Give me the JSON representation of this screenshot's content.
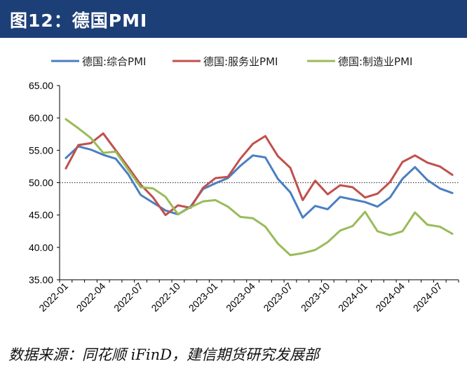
{
  "header": {
    "title": "图12：德国PMI"
  },
  "footer": {
    "source": "数据来源：同花顺 iFinD，建信期货研究发展部"
  },
  "chart_data": {
    "type": "line",
    "title": "",
    "xlabel": "",
    "ylabel": "",
    "ylim": [
      35,
      65
    ],
    "yticks": [
      "35.00",
      "40.00",
      "45.00",
      "50.00",
      "55.00",
      "60.00",
      "65.00"
    ],
    "reference_line": 50,
    "legend_position": "top",
    "x": [
      "2022-01",
      "2022-02",
      "2022-03",
      "2022-04",
      "2022-05",
      "2022-06",
      "2022-07",
      "2022-08",
      "2022-09",
      "2022-10",
      "2022-11",
      "2022-12",
      "2023-01",
      "2023-02",
      "2023-03",
      "2023-04",
      "2023-05",
      "2023-06",
      "2023-07",
      "2023-08",
      "2023-09",
      "2023-10",
      "2023-11",
      "2023-12",
      "2024-01",
      "2024-02",
      "2024-03",
      "2024-04",
      "2024-05",
      "2024-06",
      "2024-07",
      "2024-08"
    ],
    "xtick_labels": [
      "2022-01",
      "2022-04",
      "2022-07",
      "2022-10",
      "2023-01",
      "2023-04",
      "2023-07",
      "2023-10",
      "2024-01",
      "2024-04",
      "2024-07"
    ],
    "series": [
      {
        "name": "德国:综合PMI",
        "color": "#4a7fc1",
        "values": [
          53.8,
          55.6,
          55.1,
          54.3,
          53.7,
          51.3,
          48.1,
          46.9,
          45.7,
          45.1,
          46.3,
          49.0,
          49.9,
          50.7,
          52.6,
          54.2,
          53.9,
          50.6,
          48.5,
          44.6,
          46.4,
          45.9,
          47.8,
          47.4,
          47.0,
          46.3,
          47.7,
          50.6,
          52.4,
          50.4,
          49.1,
          48.4
        ]
      },
      {
        "name": "德国:服务业PMI",
        "color": "#c0504d",
        "values": [
          52.2,
          55.8,
          56.1,
          57.6,
          55.0,
          52.4,
          49.7,
          47.7,
          45.0,
          46.5,
          46.1,
          49.2,
          50.7,
          50.9,
          53.7,
          56.0,
          57.2,
          54.1,
          52.3,
          47.3,
          50.3,
          48.2,
          49.6,
          49.3,
          47.7,
          48.3,
          50.1,
          53.2,
          54.2,
          53.1,
          52.5,
          51.2
        ]
      },
      {
        "name": "德国:制造业PMI",
        "color": "#9bbb59",
        "values": [
          59.8,
          58.4,
          56.9,
          54.6,
          54.8,
          52.0,
          49.3,
          49.1,
          47.8,
          45.1,
          46.2,
          47.1,
          47.3,
          46.3,
          44.7,
          44.5,
          43.2,
          40.6,
          38.8,
          39.1,
          39.6,
          40.8,
          42.6,
          43.3,
          45.5,
          42.5,
          41.9,
          42.5,
          45.4,
          43.5,
          43.2,
          42.1
        ]
      }
    ]
  }
}
